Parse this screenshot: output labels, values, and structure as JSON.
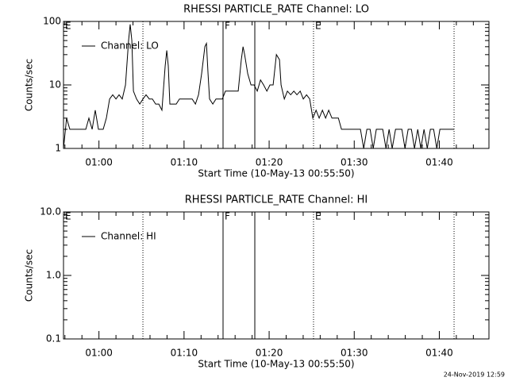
{
  "chart_data": [
    {
      "type": "line",
      "title": "RHESSI PARTICLE_RATE Channel: LO",
      "xlabel": "Start Time (10-May-13 00:55:50)",
      "ylabel": "Counts/sec",
      "log_y": true,
      "legend": "upper left",
      "xlim": [
        0,
        3000
      ],
      "xticks": [
        {
          "value": 250,
          "label": "01:00"
        },
        {
          "value": 850,
          "label": "01:10"
        },
        {
          "value": 1450,
          "label": "01:20"
        },
        {
          "value": 2050,
          "label": "01:30"
        },
        {
          "value": 2650,
          "label": "01:40"
        }
      ],
      "ylim": [
        1,
        100
      ],
      "yticks": [
        1,
        10,
        100
      ],
      "markers": [
        {
          "x": 560,
          "style": "dotted"
        },
        {
          "x": 1125,
          "style": "solid"
        },
        {
          "x": 1349,
          "style": "solid"
        },
        {
          "x": 1763,
          "style": "dotted"
        },
        {
          "x": 2754,
          "style": "dotted"
        }
      ],
      "marker_labels": [
        {
          "x": 0,
          "text": "E"
        },
        {
          "x": 1125,
          "text": "F"
        },
        {
          "x": 1763,
          "text": "E"
        }
      ],
      "x": [
        0,
        22,
        45,
        67,
        112,
        157,
        179,
        202,
        224,
        246,
        280,
        302,
        325,
        347,
        370,
        392,
        414,
        437,
        459,
        470,
        482,
        493,
        515,
        538,
        560,
        582,
        605,
        627,
        650,
        672,
        694,
        717,
        728,
        739,
        750,
        773,
        795,
        818,
        840,
        862,
        885,
        907,
        930,
        952,
        974,
        997,
        1008,
        1019,
        1030,
        1053,
        1075,
        1098,
        1120,
        1142,
        1165,
        1187,
        1210,
        1232,
        1254,
        1266,
        1277,
        1299,
        1322,
        1344,
        1366,
        1389,
        1411,
        1434,
        1456,
        1478,
        1501,
        1523,
        1534,
        1557,
        1579,
        1602,
        1624,
        1646,
        1669,
        1691,
        1714,
        1736,
        1758,
        1781,
        1803,
        1826,
        1848,
        1870,
        1893,
        1915,
        1938,
        1960,
        1982,
        2005,
        2027,
        2050,
        2072,
        2094,
        2117,
        2139,
        2162,
        2184,
        2206,
        2229,
        2251,
        2274,
        2296,
        2318,
        2341,
        2363,
        2386,
        2408,
        2430,
        2453,
        2475,
        2498,
        2520,
        2542,
        2565,
        2587,
        2610,
        2632,
        2654,
        2677,
        2699,
        2722,
        2755
      ],
      "series": [
        {
          "name": "Channel: LO",
          "color": "#000000",
          "values": [
            1,
            3,
            2,
            2,
            2,
            2,
            3,
            2,
            4,
            2,
            2,
            3,
            6,
            7,
            6,
            7,
            6,
            10,
            50,
            90,
            50,
            8,
            6,
            5,
            6,
            7,
            6,
            6,
            5,
            5,
            4,
            20,
            35,
            20,
            5,
            5,
            5,
            6,
            6,
            6,
            6,
            6,
            5,
            7,
            15,
            40,
            45,
            15,
            6,
            5,
            6,
            6,
            6,
            8,
            8,
            8,
            8,
            8,
            25,
            40,
            30,
            15,
            10,
            10,
            8,
            12,
            10,
            8,
            10,
            10,
            30,
            25,
            10,
            6,
            8,
            7,
            8,
            7,
            8,
            6,
            7,
            6,
            3,
            4,
            3,
            4,
            3,
            4,
            3,
            3,
            3,
            2,
            2,
            2,
            2,
            2,
            2,
            2,
            1,
            2,
            2,
            1,
            2,
            2,
            2,
            1,
            2,
            1,
            2,
            2,
            2,
            1,
            2,
            2,
            1,
            2,
            1,
            2,
            1,
            2,
            2,
            1,
            2,
            2,
            2,
            2,
            2
          ]
        }
      ]
    },
    {
      "type": "line",
      "title": "RHESSI PARTICLE_RATE Channel: HI",
      "xlabel": "Start Time (10-May-13 00:55:50)",
      "ylabel": "Counts/sec",
      "log_y": true,
      "legend": "upper left",
      "xlim": [
        0,
        3000
      ],
      "xticks": [
        {
          "value": 250,
          "label": "01:00"
        },
        {
          "value": 850,
          "label": "01:10"
        },
        {
          "value": 1450,
          "label": "01:20"
        },
        {
          "value": 2050,
          "label": "01:30"
        },
        {
          "value": 2650,
          "label": "01:40"
        }
      ],
      "ylim": [
        0.1,
        10
      ],
      "yticks": [
        0.1,
        {
          "value": 1,
          "label": "1.0"
        },
        {
          "value": 10,
          "label": "10.0"
        }
      ],
      "markers": [
        {
          "x": 560,
          "style": "dotted"
        },
        {
          "x": 1125,
          "style": "solid"
        },
        {
          "x": 1349,
          "style": "solid"
        },
        {
          "x": 1763,
          "style": "dotted"
        },
        {
          "x": 2754,
          "style": "dotted"
        }
      ],
      "marker_labels": [
        {
          "x": 0,
          "text": "E"
        },
        {
          "x": 1125,
          "text": "F"
        },
        {
          "x": 1763,
          "text": "E"
        }
      ],
      "x": [],
      "series": [
        {
          "name": "Channel: HI",
          "color": "#000000",
          "values": []
        }
      ]
    }
  ],
  "timestamp": "24-Nov-2019 12:59"
}
